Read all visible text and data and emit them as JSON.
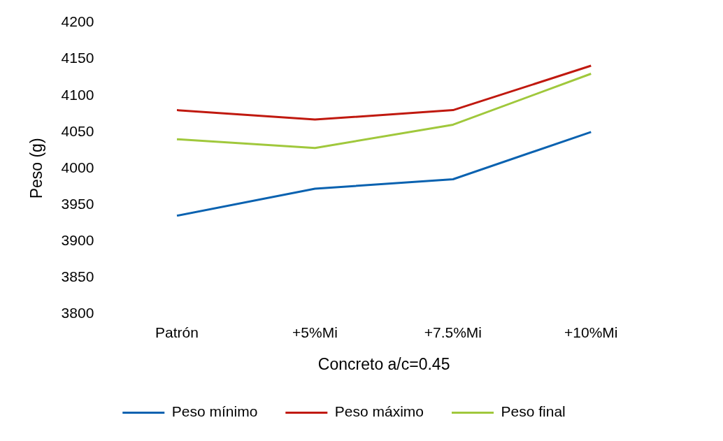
{
  "chart_data": {
    "type": "line",
    "xlabel": "Concreto a/c=0.45",
    "ylabel": "Peso (g)",
    "categories": [
      "Patrón",
      "+5%Mi",
      "+7.5%Mi",
      "+10%Mi"
    ],
    "series": [
      {
        "name": "Peso mínimo",
        "color": "#0a62b0",
        "values": [
          3935,
          3972,
          3985,
          4050
        ]
      },
      {
        "name": "Peso máximo",
        "color": "#c0190f",
        "values": [
          4080,
          4067,
          4080,
          4141
        ]
      },
      {
        "name": "Peso final",
        "color": "#a0c83c",
        "values": [
          4040,
          4028,
          4060,
          4130
        ]
      }
    ],
    "ylim": [
      3800,
      4200
    ],
    "yticks": [
      3800,
      3850,
      3900,
      3950,
      4000,
      4050,
      4100,
      4150,
      4200
    ],
    "grid": false,
    "legend": "bottom",
    "marker": "none",
    "line_style": "solid"
  }
}
